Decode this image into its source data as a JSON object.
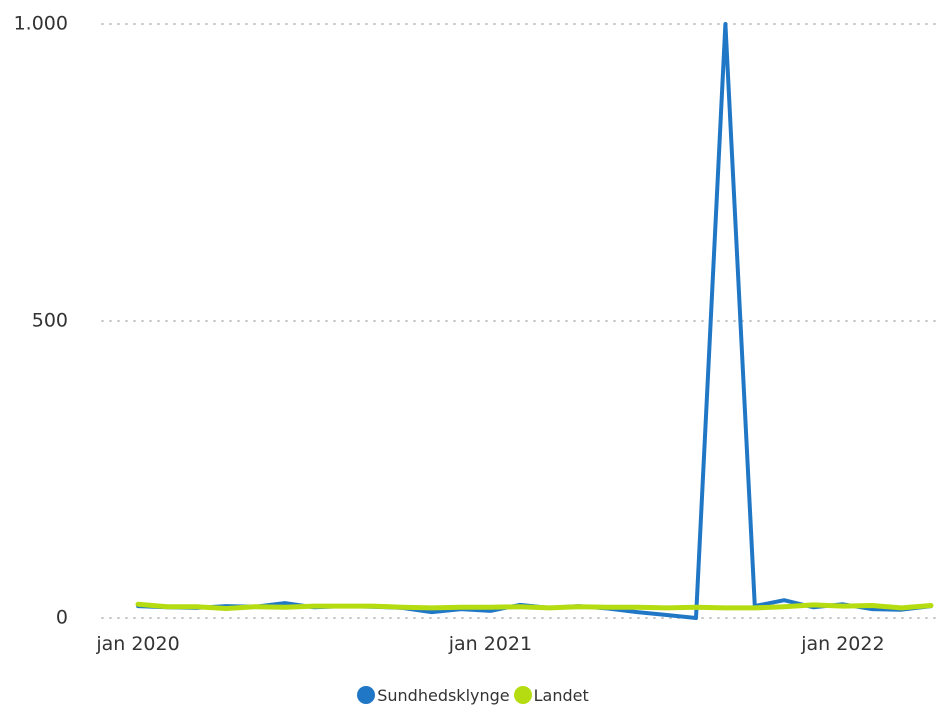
{
  "colors": {
    "series_blue": "#1f77c6",
    "series_green": "#b5dc10",
    "grid": "#c8c8c8",
    "text": "#333333"
  },
  "chart_data": {
    "type": "line",
    "title": "",
    "xlabel": "",
    "ylabel": "",
    "ylim": [
      0,
      1000
    ],
    "y_ticks": [
      {
        "value": 0,
        "label": "0"
      },
      {
        "value": 500,
        "label": "500"
      },
      {
        "value": 1000,
        "label": "1.000"
      }
    ],
    "x_ticks": [
      {
        "value": "2020-01",
        "label": "jan 2020"
      },
      {
        "value": "2021-01",
        "label": "jan 2021"
      },
      {
        "value": "2022-01",
        "label": "jan 2022"
      }
    ],
    "xlim": [
      "2020-01",
      "2022-04"
    ],
    "grid": true,
    "legend_position": "bottom-center",
    "x": [
      "2020-01",
      "2020-02",
      "2020-03",
      "2020-04",
      "2020-05",
      "2020-06",
      "2020-07",
      "2020-08",
      "2020-09",
      "2020-10",
      "2020-11",
      "2020-12",
      "2021-01",
      "2021-02",
      "2021-03",
      "2021-04",
      "2021-05",
      "2021-06",
      "2021-07",
      "2021-08",
      "2021-09",
      "2021-10",
      "2021-11",
      "2021-12",
      "2022-01",
      "2022-02",
      "2022-03",
      "2022-04"
    ],
    "series": [
      {
        "name": "Sundhedsklynge",
        "color": "#1f77c6",
        "values": [
          20,
          18,
          17,
          20,
          19,
          25,
          18,
          20,
          19,
          17,
          10,
          15,
          12,
          22,
          17,
          20,
          16,
          10,
          5,
          0,
          1000,
          20,
          30,
          18,
          23,
          15,
          14,
          20
        ]
      },
      {
        "name": "Landet",
        "color": "#b5dc10",
        "values": [
          23,
          19,
          19,
          16,
          19,
          18,
          20,
          20,
          20,
          18,
          17,
          18,
          18,
          19,
          17,
          19,
          18,
          18,
          17,
          18,
          17,
          17,
          19,
          22,
          20,
          21,
          17,
          21
        ]
      }
    ]
  }
}
